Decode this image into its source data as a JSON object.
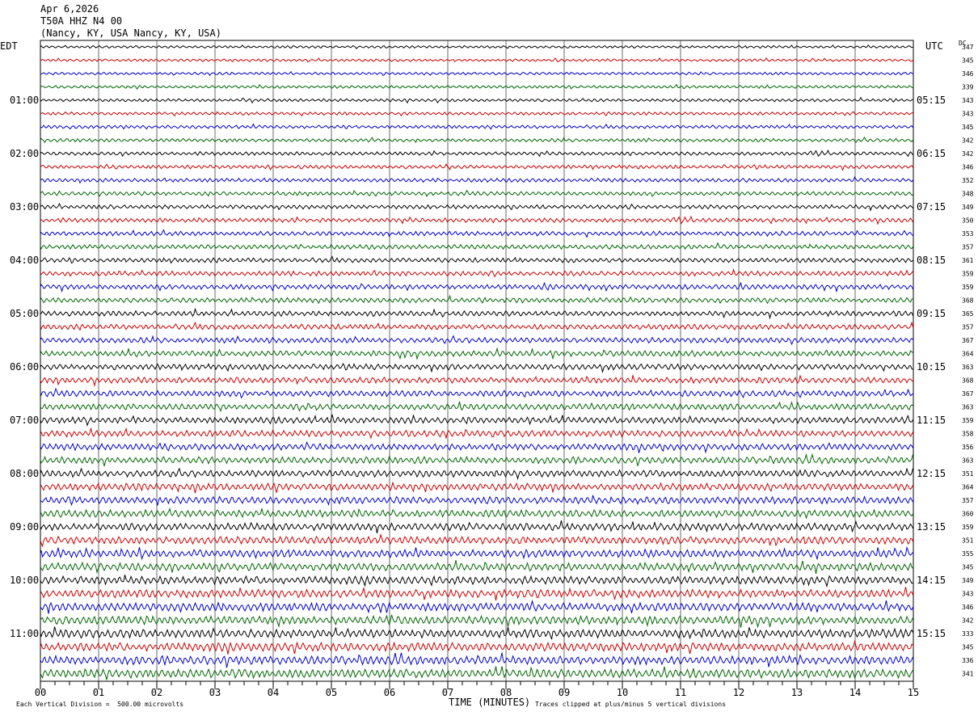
{
  "header": {
    "date": "Apr 6,2026",
    "station": "T50A HHZ N4 00",
    "location": "(Nancy, KY, USA Nancy, KY, USA)"
  },
  "labels": {
    "left_tz": "EDT",
    "right_tz": "UTC",
    "dc": "DC"
  },
  "chart_data": {
    "type": "line",
    "title": "T50A HHZ N4 00",
    "xlabel": "TIME (MINUTES)",
    "xlim": [
      0,
      15
    ],
    "x_ticks": [
      "00",
      "01",
      "02",
      "03",
      "04",
      "05",
      "06",
      "07",
      "08",
      "09",
      "10",
      "11",
      "12",
      "13",
      "14",
      "15"
    ],
    "left_hour_labels": [
      "01:00",
      "02:00",
      "03:00",
      "04:00",
      "05:00",
      "06:00",
      "07:00",
      "08:00",
      "09:00",
      "10:00",
      "11:00"
    ],
    "right_hour_labels": [
      "05:15",
      "06:15",
      "07:15",
      "08:15",
      "09:15",
      "10:15",
      "11:15",
      "12:15",
      "13:15",
      "14:15",
      "15:15"
    ],
    "trace_colors": [
      "#000000",
      "#cc0000",
      "#0000cc",
      "#006600"
    ],
    "num_traces": 48,
    "dc_offsets": [
      347,
      345,
      346,
      339,
      343,
      343,
      345,
      342,
      342,
      346,
      352,
      348,
      349,
      350,
      353,
      357,
      361,
      359,
      359,
      368,
      365,
      357,
      367,
      364,
      363,
      368,
      367,
      363,
      359,
      358,
      356,
      363,
      351,
      364,
      357,
      360,
      359,
      351,
      355,
      345,
      349,
      343,
      346,
      342,
      333,
      345,
      336,
      341
    ],
    "grid": true
  },
  "footer": {
    "scale": "Each Vertical Division =  500.00 microvolts",
    "clip": "Traces clipped at plus/minus 5 vertical divisions"
  }
}
